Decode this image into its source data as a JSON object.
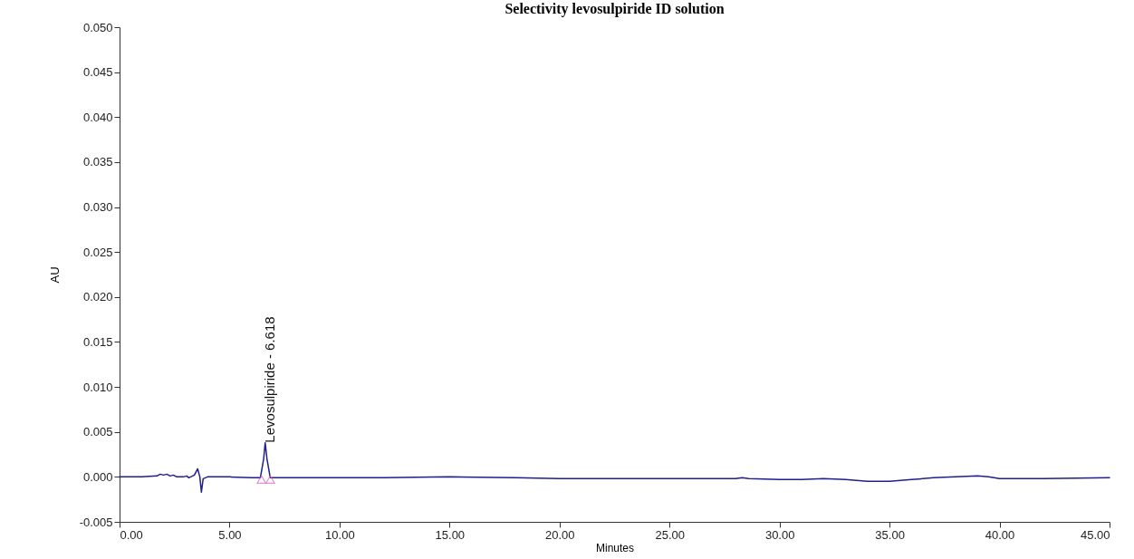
{
  "chart_data": {
    "type": "line",
    "title": "Selectivity levosulpiride ID solution",
    "xlabel": "Minutes",
    "ylabel": "AU",
    "xlim": [
      0,
      45
    ],
    "xticks": [
      {
        "value": 0,
        "label": "0.00"
      },
      {
        "value": 5,
        "label": "5.00"
      },
      {
        "value": 10,
        "label": "10.00"
      },
      {
        "value": 15,
        "label": "15.00"
      },
      {
        "value": 20,
        "label": "20.00"
      },
      {
        "value": 25,
        "label": "25.00"
      },
      {
        "value": 30,
        "label": "30.00"
      },
      {
        "value": 35,
        "label": "35.00"
      },
      {
        "value": 40,
        "label": "40.00"
      },
      {
        "value": 45,
        "label": "45.00"
      }
    ],
    "ylim": [
      -0.005,
      0.05
    ],
    "yticks": [
      {
        "value": -0.005,
        "label": "-0.005"
      },
      {
        "value": 0,
        "label": "0.000"
      },
      {
        "value": 0.005,
        "label": "0.005"
      },
      {
        "value": 0.01,
        "label": "0.010"
      },
      {
        "value": 0.015,
        "label": "0.015"
      },
      {
        "value": 0.02,
        "label": "0.020"
      },
      {
        "value": 0.025,
        "label": "0.025"
      },
      {
        "value": 0.03,
        "label": "0.030"
      },
      {
        "value": 0.035,
        "label": "0.035"
      },
      {
        "value": 0.04,
        "label": "0.040"
      },
      {
        "value": 0.045,
        "label": "0.045"
      },
      {
        "value": 0.05,
        "label": "0.050"
      }
    ],
    "grid": false,
    "series": [
      {
        "color": "#1f1f8f",
        "x": [
          0,
          1,
          1.7,
          1.85,
          2.0,
          2.15,
          2.3,
          2.45,
          2.6,
          2.9,
          3.05,
          3.15,
          3.4,
          3.55,
          3.65,
          3.72,
          3.8,
          4,
          5,
          6.0,
          6.4,
          6.55,
          6.62,
          6.7,
          6.85,
          8,
          10,
          12,
          15,
          18,
          20,
          23,
          26,
          28,
          28.3,
          28.6,
          30,
          31,
          32,
          33,
          34,
          35,
          36,
          37,
          38,
          39,
          39.5,
          40,
          42,
          45
        ],
        "values": [
          0,
          0,
          0.0001,
          0.0003,
          0.0002,
          0.0003,
          0.0001,
          0.0002,
          0,
          0,
          0.0001,
          -0.0001,
          0.0002,
          0.0009,
          0,
          -0.0017,
          -0.0002,
          0,
          0,
          -0.0001,
          -0.0001,
          0.002,
          0.0038,
          0.002,
          -0.0001,
          -0.0001,
          -0.0001,
          -0.0001,
          0,
          -0.0001,
          -0.0002,
          -0.0002,
          -0.0002,
          -0.0002,
          -0.0001,
          -0.0002,
          -0.0003,
          -0.0003,
          -0.0002,
          -0.0003,
          -0.0005,
          -0.0005,
          -0.0003,
          -0.0001,
          0,
          0.0001,
          0,
          -0.0002,
          -0.0002,
          -0.0001
        ]
      },
      {
        "type": "scatter",
        "color": "#e060c0",
        "marker": "triangle",
        "x": [
          6.45,
          6.85
        ],
        "values": [
          -0.0003,
          -0.0003
        ]
      }
    ],
    "annotations": [
      {
        "text": "Levosulpiride - 6.618",
        "x": 6.618,
        "y": 0.0038
      }
    ]
  }
}
